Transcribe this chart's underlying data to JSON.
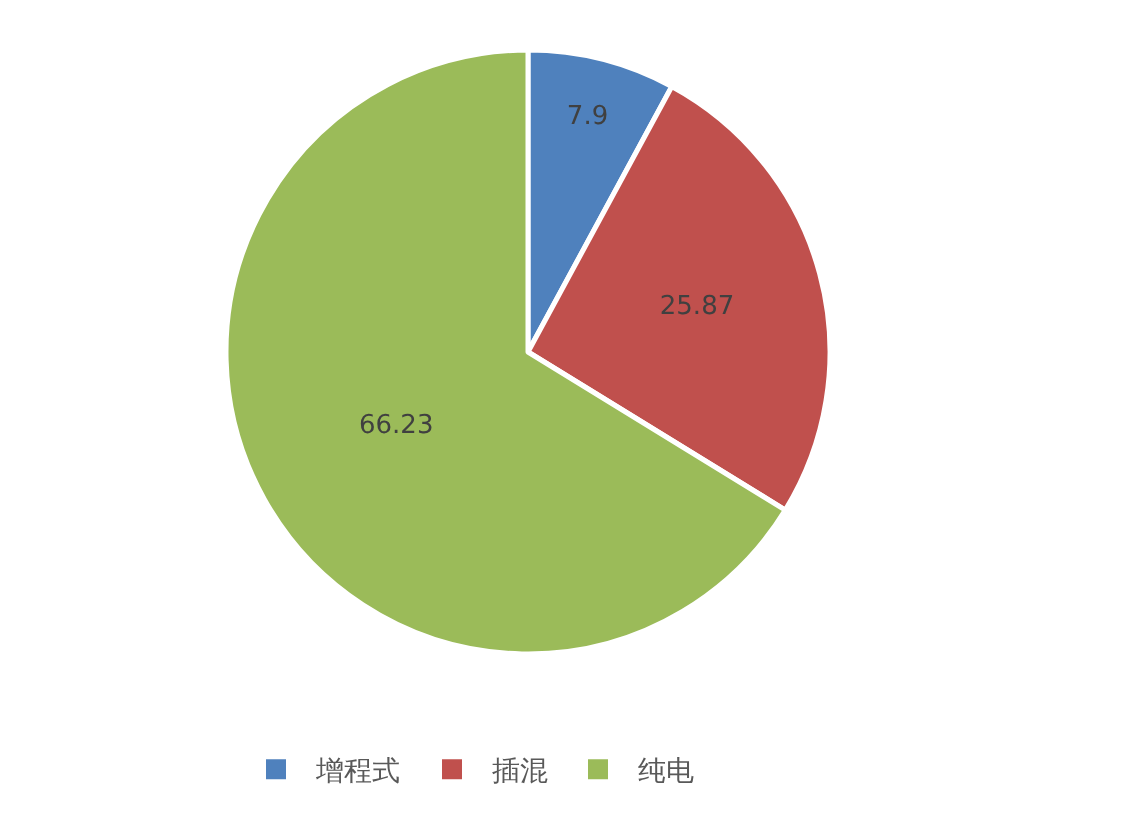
{
  "chart_data": {
    "type": "pie",
    "categories": [
      "增程式",
      "插混",
      "纯电"
    ],
    "values": [
      7.9,
      25.87,
      66.23
    ],
    "colors": [
      "#4f81bd",
      "#c0504d",
      "#9bbb59"
    ],
    "data_labels": true,
    "legend": "bottom"
  }
}
